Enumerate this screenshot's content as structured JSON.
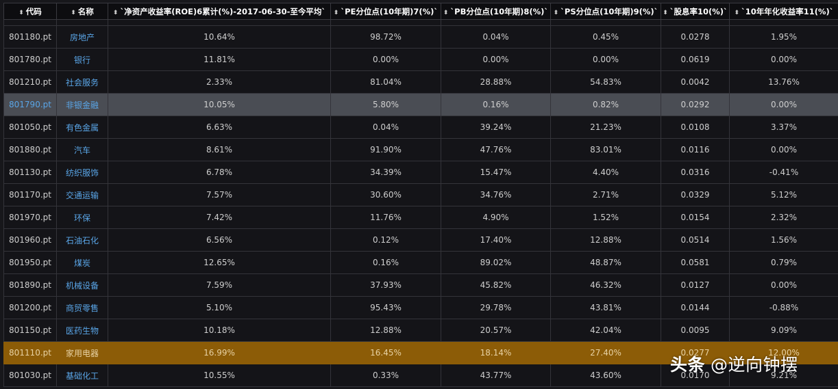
{
  "table": {
    "headers": [
      "代码",
      "名称",
      "`净资产收益率(ROE)6累计(%)-2017-06-30-至今平均`",
      "`PE分位点(10年期)7(%)`",
      "`PB分位点(10年期)8(%)`",
      "`PS分位点(10年期)9(%)`",
      "`股息率10(%)`",
      "`10年年化收益率11(%)`"
    ],
    "rows": [
      {
        "code": "801180.pt",
        "name": "房地产",
        "roe": "10.64%",
        "pe": "98.72%",
        "pb": "0.04%",
        "ps": "0.45%",
        "div": "0.0278",
        "ret": "1.95%"
      },
      {
        "code": "801780.pt",
        "name": "银行",
        "roe": "11.81%",
        "pe": "0.00%",
        "pb": "0.00%",
        "ps": "0.00%",
        "div": "0.0619",
        "ret": "0.00%"
      },
      {
        "code": "801210.pt",
        "name": "社会服务",
        "roe": "2.33%",
        "pe": "81.04%",
        "pb": "28.88%",
        "ps": "54.83%",
        "div": "0.0042",
        "ret": "13.76%"
      },
      {
        "code": "801790.pt",
        "name": "非银金融",
        "roe": "10.05%",
        "pe": "5.80%",
        "pb": "0.16%",
        "ps": "0.82%",
        "div": "0.0292",
        "ret": "0.00%"
      },
      {
        "code": "801050.pt",
        "name": "有色金属",
        "roe": "6.63%",
        "pe": "0.04%",
        "pb": "39.24%",
        "ps": "21.23%",
        "div": "0.0108",
        "ret": "3.37%"
      },
      {
        "code": "801880.pt",
        "name": "汽车",
        "roe": "8.61%",
        "pe": "91.90%",
        "pb": "47.76%",
        "ps": "83.01%",
        "div": "0.0116",
        "ret": "0.00%"
      },
      {
        "code": "801130.pt",
        "name": "纺织服饰",
        "roe": "6.78%",
        "pe": "34.39%",
        "pb": "15.47%",
        "ps": "4.40%",
        "div": "0.0316",
        "ret": "-0.41%"
      },
      {
        "code": "801170.pt",
        "name": "交通运输",
        "roe": "7.57%",
        "pe": "30.60%",
        "pb": "34.76%",
        "ps": "2.71%",
        "div": "0.0329",
        "ret": "5.12%"
      },
      {
        "code": "801970.pt",
        "name": "环保",
        "roe": "7.42%",
        "pe": "11.76%",
        "pb": "4.90%",
        "ps": "1.52%",
        "div": "0.0154",
        "ret": "2.32%"
      },
      {
        "code": "801960.pt",
        "name": "石油石化",
        "roe": "6.56%",
        "pe": "0.12%",
        "pb": "17.40%",
        "ps": "12.88%",
        "div": "0.0514",
        "ret": "1.56%"
      },
      {
        "code": "801950.pt",
        "name": "煤炭",
        "roe": "12.65%",
        "pe": "0.16%",
        "pb": "89.02%",
        "ps": "48.87%",
        "div": "0.0581",
        "ret": "0.79%"
      },
      {
        "code": "801890.pt",
        "name": "机械设备",
        "roe": "7.59%",
        "pe": "37.93%",
        "pb": "45.82%",
        "ps": "46.32%",
        "div": "0.0127",
        "ret": "0.00%"
      },
      {
        "code": "801200.pt",
        "name": "商贸零售",
        "roe": "5.10%",
        "pe": "95.43%",
        "pb": "29.78%",
        "ps": "43.81%",
        "div": "0.0144",
        "ret": "-0.88%"
      },
      {
        "code": "801150.pt",
        "name": "医药生物",
        "roe": "10.18%",
        "pe": "12.88%",
        "pb": "20.57%",
        "ps": "42.04%",
        "div": "0.0095",
        "ret": "9.09%"
      },
      {
        "code": "801110.pt",
        "name": "家用电器",
        "roe": "16.99%",
        "pe": "16.45%",
        "pb": "18.14%",
        "ps": "27.40%",
        "div": "0.0277",
        "ret": "12.00%"
      },
      {
        "code": "801030.pt",
        "name": "基础化工",
        "roe": "10.55%",
        "pe": "0.33%",
        "pb": "43.77%",
        "ps": "43.60%",
        "div": "0.0170",
        "ret": "9.21%"
      }
    ],
    "selected_row_code": "801790.pt",
    "highlighted_row_code": "801110.pt"
  },
  "watermark": {
    "brand": "头条",
    "handle": "@逆向钟摆"
  },
  "colors": {
    "background": "#17171b",
    "header_bg": "#0d0d10",
    "link_blue": "#5aa6e8",
    "selected_row": "#4a4d54",
    "highlight_row": "#8c5c07"
  }
}
